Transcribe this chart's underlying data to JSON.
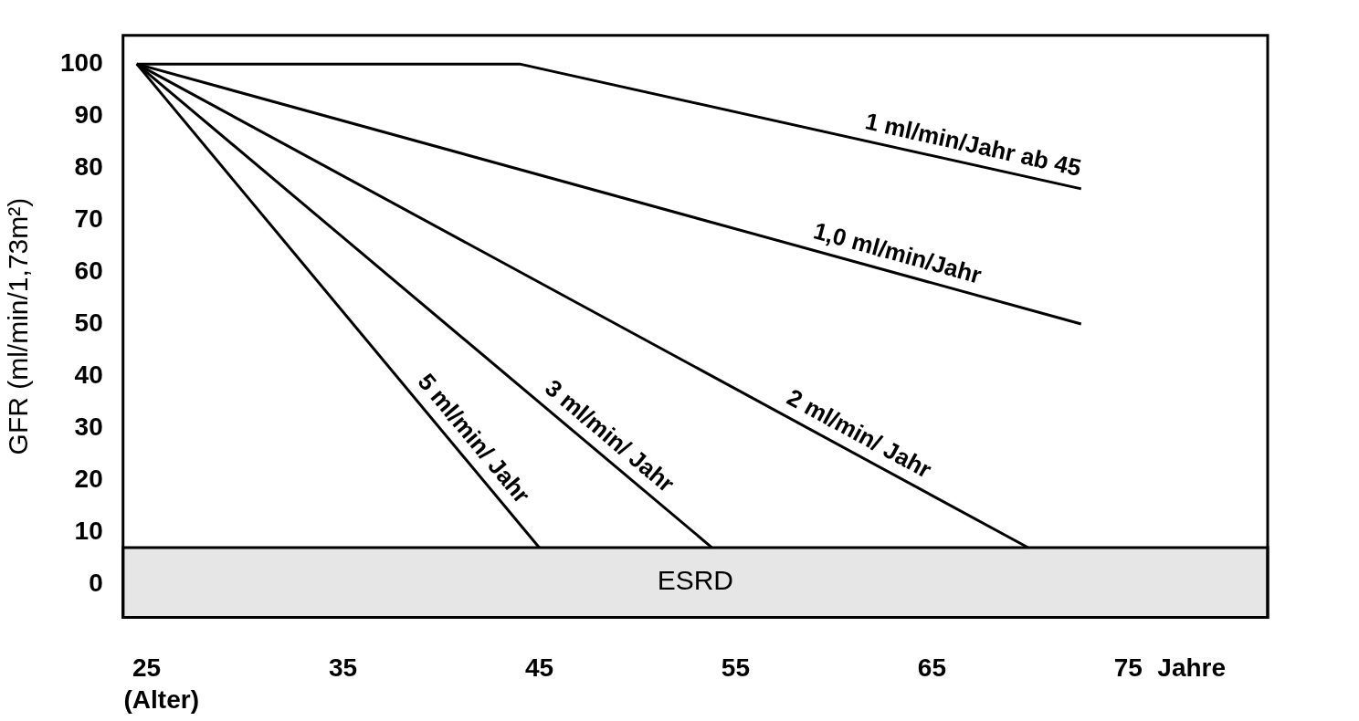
{
  "chart_data": {
    "type": "line",
    "xlabel": "Jahre",
    "ylabel": "GFR (ml/min/1,73m²)",
    "xlim": [
      23.8,
      82.1
    ],
    "xticks": [
      25,
      35,
      45,
      55,
      65,
      75
    ],
    "ylim": [
      -6.4,
      105.5
    ],
    "yticks": [
      0,
      10,
      20,
      30,
      40,
      50,
      60,
      70,
      80,
      90,
      100
    ],
    "grid": false,
    "legend": false,
    "marker": "none",
    "line_style": "solid",
    "series": [
      {
        "name": "1 ml/min/Jahr ab 45",
        "color": "#000000",
        "x": [
          24.5,
          44,
          72.6
        ],
        "values": [
          100,
          100,
          76
        ]
      },
      {
        "name": "1,0 ml/min/Jahr",
        "color": "#000000",
        "x": [
          24.5,
          72.6
        ],
        "values": [
          100,
          50
        ]
      },
      {
        "name": "2 ml/min/ Jahr",
        "color": "#000000",
        "x": [
          24.5,
          69.9
        ],
        "values": [
          100,
          7
        ]
      },
      {
        "name": "3 ml/min/ Jahr",
        "color": "#000000",
        "x": [
          24.5,
          53.8
        ],
        "values": [
          100,
          7
        ]
      },
      {
        "name": "5 ml/min/ Jahr",
        "color": "#000000",
        "x": [
          24.5,
          45
        ],
        "values": [
          100,
          7
        ]
      }
    ],
    "bands": [
      {
        "axis": "y",
        "from": -6.4,
        "to": 7,
        "label": "ESRD",
        "color": "#e6e6e6"
      }
    ],
    "annotations": [
      "(Alter)"
    ]
  }
}
